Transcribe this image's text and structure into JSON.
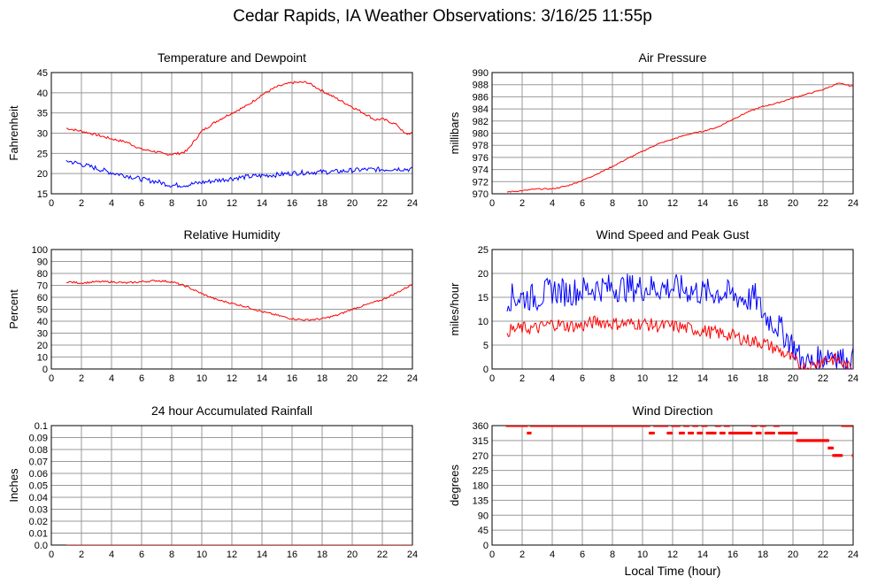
{
  "page": {
    "title": "Cedar Rapids, IA Weather Observations: 3/16/25 11:55p"
  },
  "colors": {
    "primary_series": "#ff0000",
    "secondary_series": "#0000ff",
    "grid": "#999999",
    "axis": "#000000"
  },
  "chart_data": [
    {
      "id": "temperature-dewpoint",
      "type": "line",
      "title": "Temperature and Dewpoint",
      "xlabel": "",
      "ylabel": "Fahrenheit",
      "xlim": [
        0,
        24
      ],
      "ylim": [
        15,
        45
      ],
      "x_ticks": [
        0,
        2,
        4,
        6,
        8,
        10,
        12,
        14,
        16,
        18,
        20,
        22,
        24
      ],
      "y_ticks": [
        15,
        20,
        25,
        30,
        35,
        40,
        45
      ],
      "grid": true,
      "series": [
        {
          "color": "#ff0000",
          "noise": 0.3,
          "x": [
            1,
            2,
            3,
            4,
            5,
            6,
            7,
            7.5,
            8,
            8.5,
            9,
            10,
            11,
            12,
            13,
            14,
            15,
            16,
            17,
            18,
            19,
            20,
            21,
            21.5,
            22,
            22.5,
            23,
            23.5,
            24
          ],
          "y": [
            31.2,
            30.5,
            29.6,
            28.6,
            27.8,
            26,
            25.4,
            24.8,
            24.8,
            25.0,
            25.6,
            30.5,
            33,
            35,
            36.8,
            39.5,
            41.5,
            42.5,
            42.6,
            40.5,
            38.5,
            36.5,
            34.5,
            33.3,
            33.5,
            32.8,
            32.0,
            29.8,
            30.0
          ]
        },
        {
          "color": "#0000ff",
          "noise": 0.6,
          "x": [
            1,
            2,
            3,
            4,
            5,
            6,
            7,
            8,
            9,
            10,
            11,
            12,
            13,
            14,
            15,
            16,
            17,
            18,
            19,
            20,
            21,
            22,
            23,
            24
          ],
          "y": [
            23.2,
            22.3,
            21.3,
            20.2,
            19.5,
            18.6,
            18.0,
            17.1,
            17.2,
            17.8,
            18.3,
            18.8,
            19.2,
            19.5,
            19.7,
            20.1,
            20.3,
            20.4,
            20.5,
            20.8,
            21.0,
            21.0,
            21.2,
            21.0
          ]
        }
      ]
    },
    {
      "id": "air-pressure",
      "type": "line",
      "title": "Air Pressure",
      "xlabel": "",
      "ylabel": "millibars",
      "xlim": [
        0,
        24
      ],
      "ylim": [
        970,
        990
      ],
      "x_ticks": [
        0,
        2,
        4,
        6,
        8,
        10,
        12,
        14,
        16,
        18,
        20,
        22,
        24
      ],
      "y_ticks": [
        970,
        972,
        974,
        976,
        978,
        980,
        982,
        984,
        986,
        988,
        990
      ],
      "grid": true,
      "series": [
        {
          "color": "#ff0000",
          "noise": 0.1,
          "x": [
            1,
            2,
            3,
            4,
            5,
            6,
            7,
            8,
            9,
            10,
            11,
            12,
            13,
            14,
            15,
            16,
            17,
            18,
            19,
            20,
            21,
            22,
            23,
            23.5,
            24
          ],
          "y": [
            970.3,
            970.5,
            970.8,
            970.8,
            971.3,
            972.2,
            973.3,
            974.5,
            975.8,
            977.0,
            978.2,
            979.0,
            979.8,
            980.3,
            981.0,
            982.3,
            983.5,
            984.4,
            985.0,
            985.8,
            986.5,
            987.2,
            988.2,
            988.0,
            987.7
          ]
        }
      ]
    },
    {
      "id": "relative-humidity",
      "type": "line",
      "title": "Relative Humidity",
      "xlabel": "",
      "ylabel": "Percent",
      "xlim": [
        0,
        24
      ],
      "ylim": [
        0,
        100
      ],
      "x_ticks": [
        0,
        2,
        4,
        6,
        8,
        10,
        12,
        14,
        16,
        18,
        20,
        22,
        24
      ],
      "y_ticks": [
        0,
        10,
        20,
        30,
        40,
        50,
        60,
        70,
        80,
        90,
        100
      ],
      "grid": true,
      "series": [
        {
          "color": "#ff0000",
          "noise": 0.8,
          "x": [
            1,
            2,
            3,
            4,
            5,
            6,
            7,
            8,
            9,
            10,
            11,
            12,
            13,
            14,
            15,
            16,
            17,
            18,
            19,
            20,
            21,
            22,
            23,
            24
          ],
          "y": [
            73,
            72,
            73,
            73,
            72,
            73,
            74,
            73,
            69,
            63,
            58,
            55,
            52,
            48,
            45,
            42,
            41,
            42,
            45,
            50,
            54,
            58,
            64,
            71
          ]
        }
      ]
    },
    {
      "id": "wind-speed-gust",
      "type": "line",
      "title": "Wind Speed and Peak Gust",
      "xlabel": "",
      "ylabel": "miles/hour",
      "xlim": [
        0,
        24
      ],
      "ylim": [
        0,
        25
      ],
      "x_ticks": [
        0,
        2,
        4,
        6,
        8,
        10,
        12,
        14,
        16,
        18,
        20,
        22,
        24
      ],
      "y_ticks": [
        0,
        5,
        10,
        15,
        20,
        25
      ],
      "grid": true,
      "series": [
        {
          "color": "#0000ff",
          "noise": 3.0,
          "x": [
            1,
            2,
            3,
            4,
            5,
            6,
            7,
            8,
            9,
            10,
            11,
            12,
            13,
            14,
            15,
            16,
            17,
            17.5,
            18,
            19,
            20,
            20.5,
            21,
            21.5,
            22,
            22.5,
            23,
            23.5,
            24
          ],
          "y": [
            15,
            15,
            15,
            16.5,
            16,
            16.5,
            17,
            17,
            17,
            17,
            17,
            17,
            16.5,
            16,
            16,
            15.5,
            14.5,
            15,
            11.5,
            9,
            5,
            2,
            1,
            1.5,
            2.5,
            3.5,
            3,
            1,
            1.5
          ]
        },
        {
          "color": "#ff0000",
          "noise": 1.4,
          "x": [
            1,
            2,
            3,
            4,
            5,
            6,
            7,
            8,
            9,
            10,
            11,
            12,
            13,
            14,
            15,
            16,
            17,
            18,
            19,
            20,
            20.5,
            21,
            21.5,
            22,
            22.5,
            23,
            23.5,
            24
          ],
          "y": [
            8,
            8.5,
            8.5,
            9.5,
            9,
            9,
            10,
            9.5,
            9.5,
            9.5,
            9,
            9,
            8.5,
            8,
            7.5,
            7,
            6,
            5.5,
            4,
            2,
            0.5,
            0.3,
            1,
            2,
            2,
            2,
            0.5,
            0
          ]
        }
      ]
    },
    {
      "id": "rainfall-24h",
      "type": "line",
      "title": "24 hour Accumulated Rainfall",
      "xlabel": "",
      "ylabel": "Inches",
      "xlim": [
        0,
        24
      ],
      "ylim": [
        0,
        0.1
      ],
      "x_ticks": [
        0,
        2,
        4,
        6,
        8,
        10,
        12,
        14,
        16,
        18,
        20,
        22,
        24
      ],
      "y_ticks": [
        0.0,
        0.01,
        0.02,
        0.03,
        0.04,
        0.05,
        0.06,
        0.07,
        0.08,
        0.09,
        0.1
      ],
      "y_tick_labels": [
        "0.0",
        "0.01",
        "0.02",
        "0.03",
        "0.04",
        "0.05",
        "0.06",
        "0.07",
        "0.08",
        "0.09",
        "0.1"
      ],
      "grid": true,
      "series": [
        {
          "color": "#ff0000",
          "noise": 0,
          "x": [
            1,
            24
          ],
          "y": [
            0,
            0
          ]
        }
      ]
    },
    {
      "id": "wind-direction",
      "type": "scatter",
      "title": "Wind Direction",
      "xlabel": "Local Time (hour)",
      "ylabel": "degrees",
      "xlim": [
        0,
        24
      ],
      "ylim": [
        0,
        360
      ],
      "x_ticks": [
        0,
        2,
        4,
        6,
        8,
        10,
        12,
        14,
        16,
        18,
        20,
        22,
        24
      ],
      "y_ticks": [
        0,
        45,
        90,
        135,
        180,
        225,
        270,
        315,
        360
      ],
      "grid": true,
      "series": [
        {
          "color": "#ff0000",
          "x": [
            1,
            1.4,
            1.8,
            2.2,
            2.4,
            2.6,
            3,
            3.4,
            3.8,
            4.2,
            4.6,
            5,
            5.4,
            5.8,
            6.2,
            6.6,
            7,
            7.4,
            7.8,
            8.2,
            8.6,
            9,
            9.4,
            9.8,
            10.2,
            10.5,
            10.8,
            11.1,
            11.4,
            11.7,
            12,
            12.2,
            12.5,
            12.8,
            13.1,
            13.4,
            13.7,
            14,
            14.3,
            14.6,
            14.9,
            15.2,
            15.5,
            15.8,
            16.1,
            16.4,
            16.7,
            17,
            17.3,
            17.6,
            17.9,
            18.2,
            18.5,
            18.8,
            19.1,
            19.4,
            19.7,
            20,
            20.3,
            20.6,
            20.9,
            21.2,
            21.5,
            21.8,
            22.1,
            22.4,
            22.7,
            23,
            23.3,
            23.6,
            23.9,
            24
          ],
          "y": [
            360,
            360,
            360,
            360,
            337.5,
            360,
            360,
            360,
            360,
            360,
            360,
            360,
            360,
            360,
            360,
            360,
            360,
            360,
            360,
            360,
            360,
            360,
            360,
            360,
            360,
            337.5,
            360,
            360,
            360,
            337.5,
            360,
            360,
            337.5,
            360,
            337.5,
            360,
            337.5,
            360,
            337.5,
            337.5,
            360,
            337.5,
            360,
            337.5,
            337.5,
            337.5,
            337.5,
            337.5,
            360,
            337.5,
            360,
            337.5,
            337.5,
            360,
            337.5,
            337.5,
            337.5,
            337.5,
            315,
            315,
            315,
            315,
            315,
            315,
            315,
            292.5,
            270,
            270,
            360,
            360,
            360,
            270
          ]
        }
      ]
    }
  ]
}
